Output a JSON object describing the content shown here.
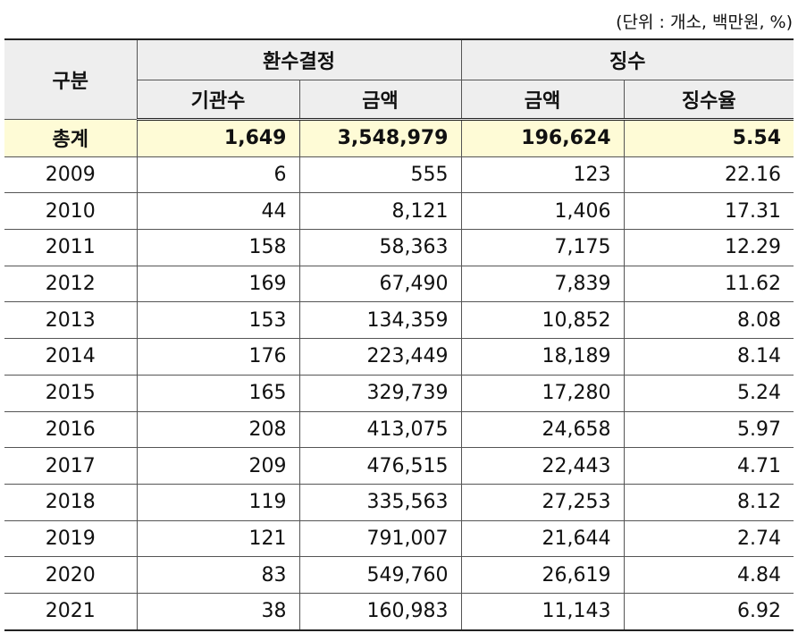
{
  "unit_note": "(단위 : 개소, 백만원, %)",
  "header": {
    "category": "구분",
    "group_decision": "환수결정",
    "group_collection": "징수",
    "col_agencies": "기관수",
    "col_amount_decision": "금액",
    "col_amount_collection": "금액",
    "col_rate": "징수율"
  },
  "total": {
    "label": "총계",
    "agencies": "1,649",
    "decided": "3,548,979",
    "collected": "196,624",
    "rate": "5.54"
  },
  "rows": [
    {
      "year": "2009",
      "agencies": "6",
      "decided": "555",
      "collected": "123",
      "rate": "22.16"
    },
    {
      "year": "2010",
      "agencies": "44",
      "decided": "8,121",
      "collected": "1,406",
      "rate": "17.31"
    },
    {
      "year": "2011",
      "agencies": "158",
      "decided": "58,363",
      "collected": "7,175",
      "rate": "12.29"
    },
    {
      "year": "2012",
      "agencies": "169",
      "decided": "67,490",
      "collected": "7,839",
      "rate": "11.62"
    },
    {
      "year": "2013",
      "agencies": "153",
      "decided": "134,359",
      "collected": "10,852",
      "rate": "8.08"
    },
    {
      "year": "2014",
      "agencies": "176",
      "decided": "223,449",
      "collected": "18,189",
      "rate": "8.14"
    },
    {
      "year": "2015",
      "agencies": "165",
      "decided": "329,739",
      "collected": "17,280",
      "rate": "5.24"
    },
    {
      "year": "2016",
      "agencies": "208",
      "decided": "413,075",
      "collected": "24,658",
      "rate": "5.97"
    },
    {
      "year": "2017",
      "agencies": "209",
      "decided": "476,515",
      "collected": "22,443",
      "rate": "4.71"
    },
    {
      "year": "2018",
      "agencies": "119",
      "decided": "335,563",
      "collected": "27,253",
      "rate": "8.12"
    },
    {
      "year": "2019",
      "agencies": "121",
      "decided": "791,007",
      "collected": "21,644",
      "rate": "2.74"
    },
    {
      "year": "2020",
      "agencies": "83",
      "decided": "549,760",
      "collected": "26,619",
      "rate": "4.84"
    },
    {
      "year": "2021",
      "agencies": "38",
      "decided": "160,983",
      "collected": "11,143",
      "rate": "6.92"
    }
  ],
  "colors": {
    "header_bg": "#eeeeee",
    "total_bg": "#fefbd6",
    "border": "#555555"
  }
}
